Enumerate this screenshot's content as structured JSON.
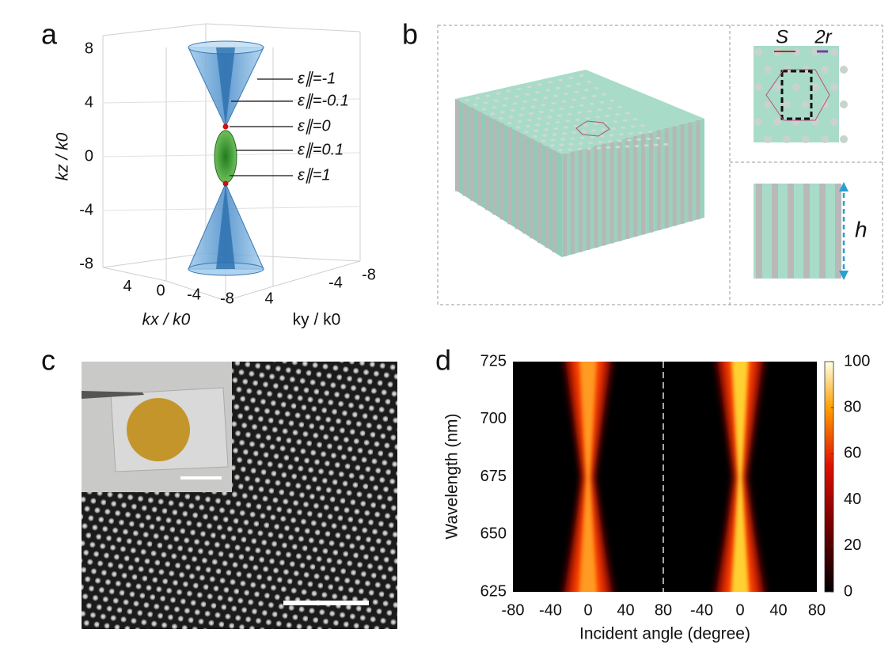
{
  "panel_a": {
    "label": "a",
    "z_axis": {
      "label": "kz / k0",
      "ticks": [
        8,
        4,
        0,
        -4,
        -8
      ]
    },
    "x_axis": {
      "label": "kx / k0",
      "ticks": [
        4,
        0,
        -4,
        -8
      ]
    },
    "y_axis": {
      "label": "ky / k0",
      "ticks": [
        4,
        -4,
        -8
      ]
    },
    "annotations": [
      "ε∥=-1",
      "ε∥=-0.1",
      "ε∥=0",
      "ε∥=0.1",
      "ε∥=1"
    ]
  },
  "panel_b": {
    "label": "b",
    "labels": {
      "spacing": "S",
      "diameter": "2r",
      "height": "h"
    }
  },
  "panel_c": {
    "label": "c"
  },
  "panel_d": {
    "label": "d",
    "y_axis": {
      "label": "Wavelength (nm)",
      "ticks": [
        725,
        700,
        675,
        650,
        625
      ]
    },
    "x_axis": {
      "label": "Incident angle (degree)",
      "left_ticks": [
        -80,
        -40,
        0,
        40,
        80
      ],
      "right_ticks": [
        -40,
        0,
        40,
        80
      ]
    },
    "colorbar": {
      "ticks": [
        100,
        80,
        60,
        40,
        20,
        0
      ]
    }
  }
}
